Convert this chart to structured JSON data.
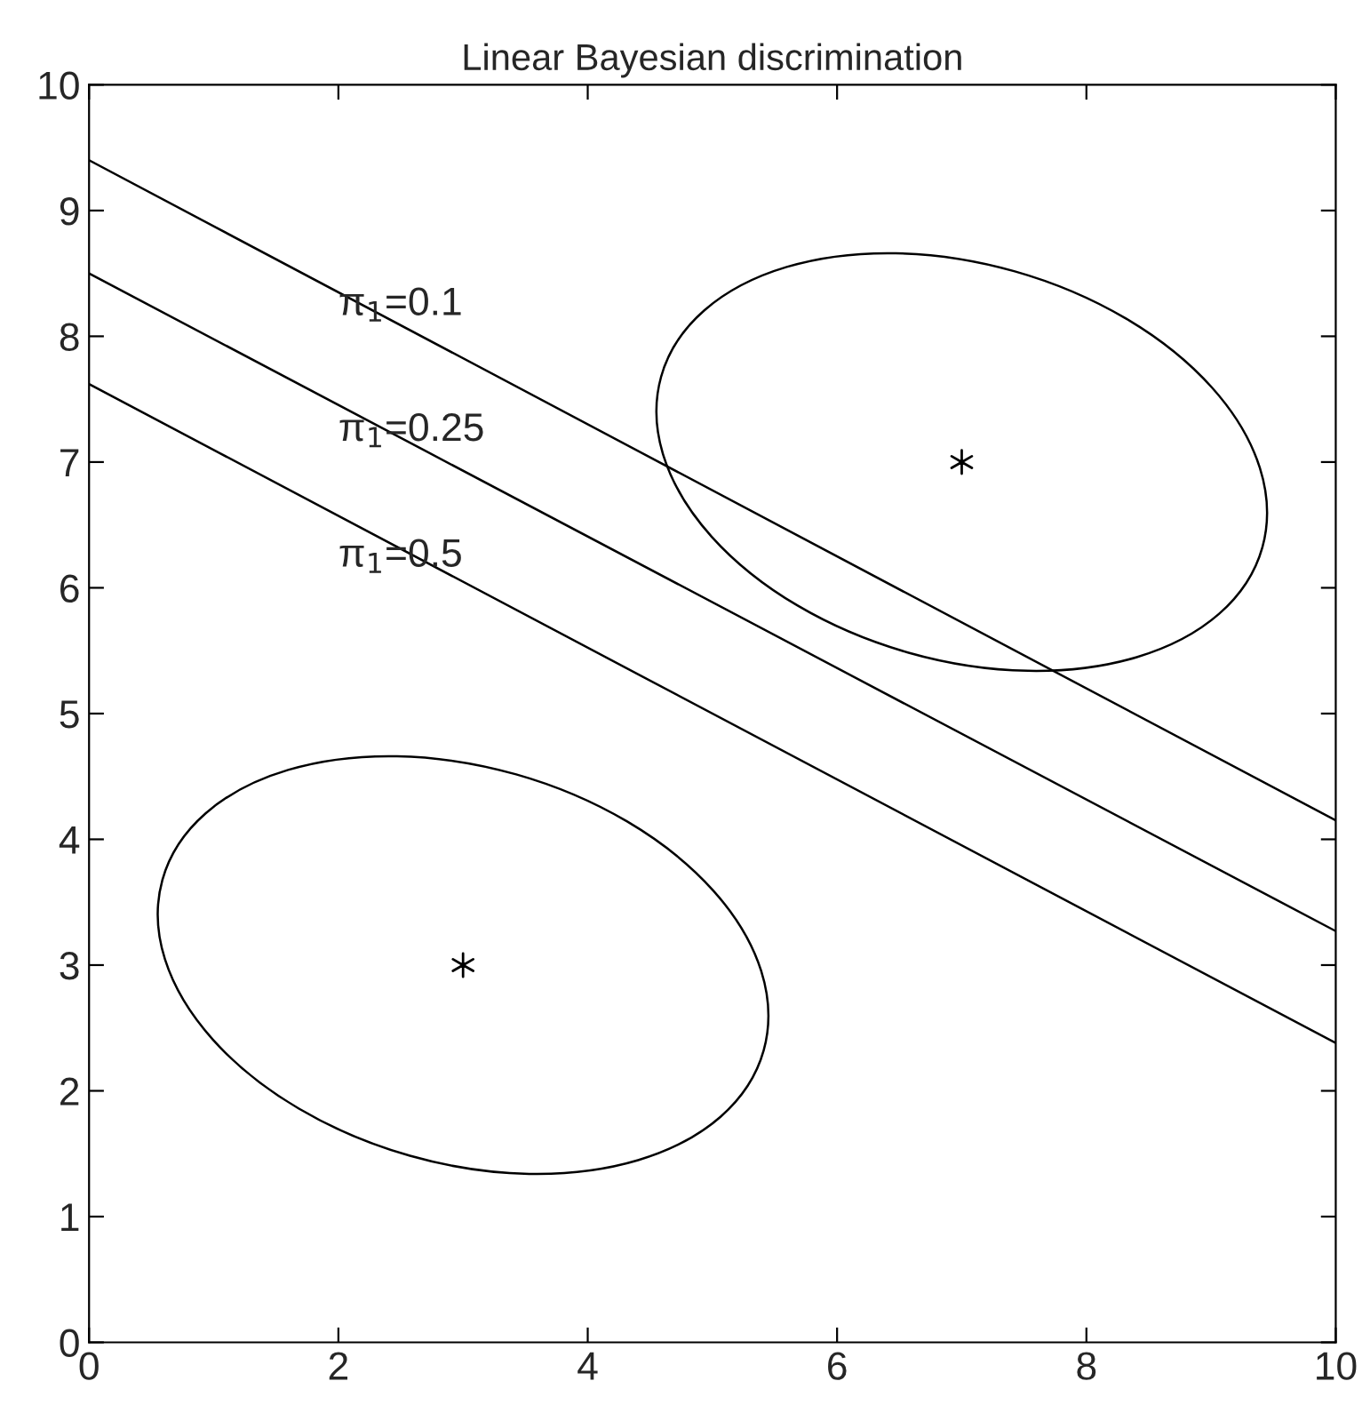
{
  "chart_data": {
    "type": "line",
    "title": "Linear Bayesian discrimination",
    "xlim": [
      0,
      10
    ],
    "ylim": [
      0,
      10
    ],
    "xticks": [
      0,
      2,
      4,
      6,
      8,
      10
    ],
    "yticks": [
      0,
      1,
      2,
      3,
      4,
      5,
      6,
      7,
      8,
      9,
      10
    ],
    "grid": false,
    "legend": false,
    "series": [
      {
        "color": "#000000",
        "x": [
          0,
          10
        ],
        "values": [
          9.4,
          4.15
        ]
      },
      {
        "color": "#000000",
        "x": [
          0,
          10
        ],
        "values": [
          8.5,
          3.27
        ]
      },
      {
        "color": "#000000",
        "x": [
          0,
          10
        ],
        "values": [
          7.62,
          2.38
        ]
      },
      {
        "type": "scatter",
        "color": "#000000",
        "marker": "cross",
        "x": [
          3,
          7
        ],
        "values": [
          3,
          7
        ]
      }
    ],
    "annotations": [
      "π$_{1}$=0.1",
      "π$_{1}$=0.25",
      "π$_{1}$=0.5"
    ]
  }
}
